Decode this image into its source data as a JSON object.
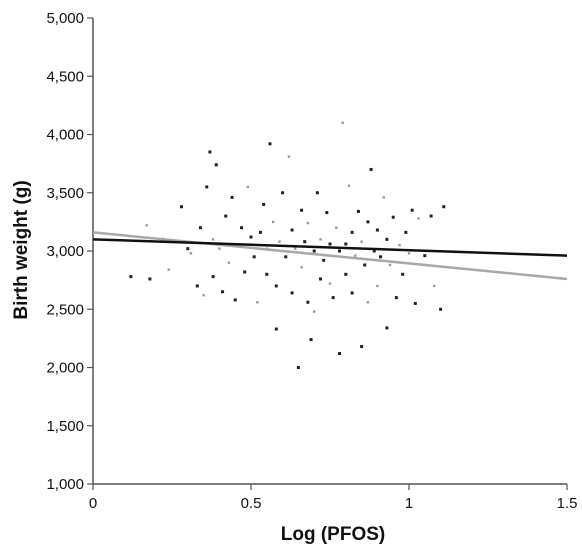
{
  "chart_data": {
    "type": "scatter",
    "xlabel": "Log (PFOS)",
    "ylabel": "Birth weight (g)",
    "xlim": [
      0,
      1.5
    ],
    "ylim": [
      1000,
      5000
    ],
    "x_ticks": [
      0,
      0.5,
      1,
      1.5
    ],
    "x_tick_labels": [
      "0",
      "0.5",
      "1",
      "1.5"
    ],
    "y_ticks": [
      1000,
      1500,
      2000,
      2500,
      3000,
      3500,
      4000,
      4500,
      5000
    ],
    "y_tick_labels": [
      "1,000",
      "1,500",
      "2,000",
      "2,500",
      "3,000",
      "3,500",
      "4,000",
      "4,500",
      "5,000"
    ],
    "grid": false,
    "legend": "none",
    "colors": {
      "points_dark": "#222222",
      "points_light": "#999999",
      "fit_dark": "#111111",
      "fit_light": "#a8a8a8",
      "axis": "#555555"
    },
    "series": [
      {
        "type": "scatter",
        "points": [
          [
            0.12,
            2780
          ],
          [
            0.17,
            3220
          ],
          [
            0.18,
            2760
          ],
          [
            0.22,
            3100
          ],
          [
            0.24,
            2840
          ],
          [
            0.28,
            3380
          ],
          [
            0.3,
            3020
          ],
          [
            0.31,
            2980
          ],
          [
            0.33,
            2700
          ],
          [
            0.34,
            3200
          ],
          [
            0.35,
            2620
          ],
          [
            0.36,
            3550
          ],
          [
            0.37,
            3850
          ],
          [
            0.38,
            3100
          ],
          [
            0.38,
            2780
          ],
          [
            0.39,
            3740
          ],
          [
            0.4,
            3020
          ],
          [
            0.41,
            2650
          ],
          [
            0.42,
            3300
          ],
          [
            0.43,
            2900
          ],
          [
            0.44,
            3460
          ],
          [
            0.45,
            2580
          ],
          [
            0.46,
            3050
          ],
          [
            0.47,
            3200
          ],
          [
            0.48,
            2820
          ],
          [
            0.49,
            3550
          ],
          [
            0.5,
            3120
          ],
          [
            0.51,
            2950
          ],
          [
            0.52,
            2560
          ],
          [
            0.53,
            3160
          ],
          [
            0.54,
            3400
          ],
          [
            0.55,
            3020
          ],
          [
            0.55,
            2800
          ],
          [
            0.56,
            3920
          ],
          [
            0.57,
            3250
          ],
          [
            0.58,
            2330
          ],
          [
            0.58,
            2700
          ],
          [
            0.59,
            3080
          ],
          [
            0.6,
            3500
          ],
          [
            0.61,
            2950
          ],
          [
            0.62,
            3810
          ],
          [
            0.63,
            3180
          ],
          [
            0.63,
            2640
          ],
          [
            0.64,
            3020
          ],
          [
            0.65,
            2000
          ],
          [
            0.66,
            3350
          ],
          [
            0.66,
            2860
          ],
          [
            0.67,
            3080
          ],
          [
            0.68,
            2560
          ],
          [
            0.68,
            3240
          ],
          [
            0.69,
            2240
          ],
          [
            0.7,
            3000
          ],
          [
            0.7,
            2480
          ],
          [
            0.71,
            3500
          ],
          [
            0.72,
            2760
          ],
          [
            0.72,
            3100
          ],
          [
            0.73,
            2920
          ],
          [
            0.74,
            3330
          ],
          [
            0.75,
            2720
          ],
          [
            0.75,
            3060
          ],
          [
            0.76,
            2600
          ],
          [
            0.77,
            3200
          ],
          [
            0.78,
            3000
          ],
          [
            0.78,
            2120
          ],
          [
            0.79,
            4100
          ],
          [
            0.8,
            3060
          ],
          [
            0.8,
            2800
          ],
          [
            0.81,
            3560
          ],
          [
            0.82,
            3160
          ],
          [
            0.82,
            2640
          ],
          [
            0.83,
            2960
          ],
          [
            0.84,
            3340
          ],
          [
            0.85,
            2180
          ],
          [
            0.85,
            3080
          ],
          [
            0.86,
            2880
          ],
          [
            0.87,
            3250
          ],
          [
            0.87,
            2560
          ],
          [
            0.88,
            3700
          ],
          [
            0.89,
            3000
          ],
          [
            0.9,
            2700
          ],
          [
            0.9,
            3180
          ],
          [
            0.91,
            2950
          ],
          [
            0.92,
            3460
          ],
          [
            0.93,
            2340
          ],
          [
            0.93,
            3100
          ],
          [
            0.94,
            2880
          ],
          [
            0.95,
            3290
          ],
          [
            0.96,
            2600
          ],
          [
            0.97,
            3050
          ],
          [
            0.98,
            2800
          ],
          [
            0.99,
            3160
          ],
          [
            1.0,
            2980
          ],
          [
            1.01,
            3350
          ],
          [
            1.02,
            2550
          ],
          [
            1.03,
            3280
          ],
          [
            1.05,
            2960
          ],
          [
            1.07,
            3300
          ],
          [
            1.08,
            2700
          ],
          [
            1.1,
            2500
          ],
          [
            1.11,
            3380
          ]
        ]
      },
      {
        "type": "line",
        "x": [
          0,
          1.5
        ],
        "y": [
          3100,
          2960
        ]
      },
      {
        "type": "line",
        "x": [
          0,
          1.5
        ],
        "y": [
          3160,
          2760
        ]
      }
    ]
  }
}
